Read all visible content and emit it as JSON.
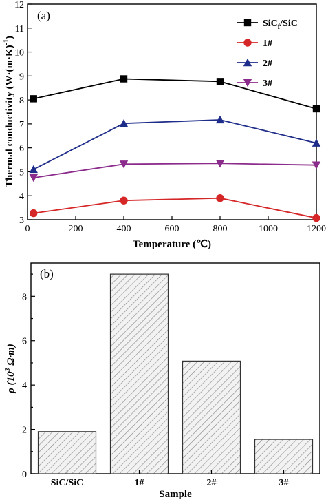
{
  "chart_data": [
    {
      "type": "line",
      "panel_label": "(a)",
      "xlabel": "Temperature (℃)",
      "ylabel": "Thermal conductivity (W·(m·K)",
      "ylabel_sup": "-1",
      "ylabel_end": ")",
      "xlim": [
        0,
        1200
      ],
      "ylim": [
        3,
        12
      ],
      "xticks": [
        0,
        200,
        400,
        600,
        800,
        1000,
        1200
      ],
      "yticks": [
        3,
        4,
        5,
        6,
        7,
        8,
        9,
        10,
        11,
        12
      ],
      "legend_position": "top-right",
      "series": [
        {
          "name": "SiC",
          "name_sub": "f",
          "name_rest": "/SiC",
          "color": "#000000",
          "marker": "square",
          "x": [
            25,
            400,
            800,
            1200
          ],
          "y": [
            8.05,
            8.88,
            8.77,
            7.63
          ]
        },
        {
          "name": "1#",
          "color": "#d62728",
          "marker": "circle",
          "x": [
            25,
            400,
            800,
            1200
          ],
          "y": [
            3.27,
            3.8,
            3.9,
            3.07
          ]
        },
        {
          "name": "2#",
          "color": "#1f2d8a",
          "marker": "triangle-up",
          "x": [
            25,
            400,
            800,
            1200
          ],
          "y": [
            5.1,
            7.02,
            7.17,
            6.2
          ]
        },
        {
          "name": "3#",
          "color": "#8b2b8b",
          "marker": "triangle-down",
          "x": [
            25,
            400,
            800,
            1200
          ],
          "y": [
            4.75,
            5.32,
            5.35,
            5.28
          ]
        }
      ]
    },
    {
      "type": "bar",
      "panel_label": "(b)",
      "xlabel": "Sample",
      "ylabel": "ρ (10",
      "ylabel_sup": "3",
      "ylabel_end": " Ω·m)",
      "categories": [
        "SiC/SiC",
        "1#",
        "2#",
        "3#"
      ],
      "values": [
        1.9,
        9.0,
        5.08,
        1.55
      ],
      "ylim": [
        0,
        9.5
      ],
      "yticks": [
        0,
        2,
        4,
        6,
        8
      ],
      "bar_fill": "hatched"
    }
  ]
}
